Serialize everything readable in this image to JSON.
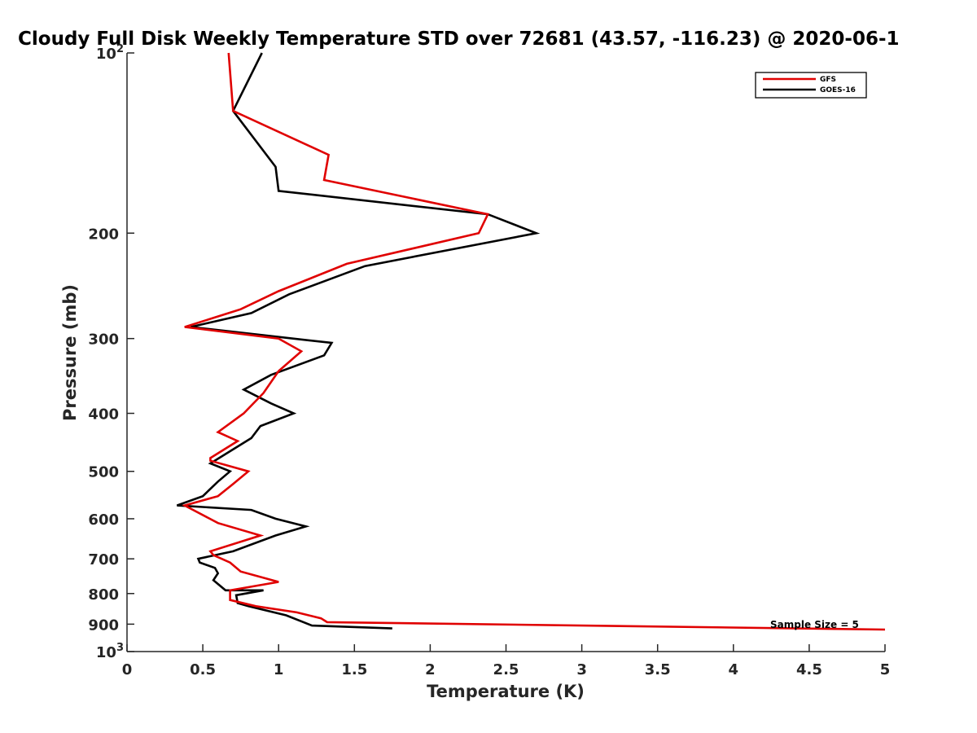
{
  "chart_data": {
    "type": "line",
    "title": "Cloudy Full Disk Weekly Temperature STD over 72681 (43.57, -116.23) @ 2020-06-1",
    "xlabel": "Temperature (K)",
    "ylabel": "Pressure (mb)",
    "xlim": [
      0,
      5
    ],
    "ylim": [
      100,
      1000
    ],
    "y_scale": "log",
    "y_reversed": true,
    "grid": false,
    "legend_position": "top-right",
    "x_ticks": [
      "0",
      "0.5",
      "1",
      "1.5",
      "2",
      "2.5",
      "3",
      "3.5",
      "4",
      "4.5",
      "5"
    ],
    "x_tick_values": [
      0,
      0.5,
      1,
      1.5,
      2,
      2.5,
      3,
      3.5,
      4,
      4.5,
      5
    ],
    "y_ticks": [
      {
        "value": 100,
        "base": "10",
        "exp": "2"
      },
      {
        "value": 200,
        "label": "200"
      },
      {
        "value": 300,
        "label": "300"
      },
      {
        "value": 400,
        "label": "400"
      },
      {
        "value": 500,
        "label": "500"
      },
      {
        "value": 600,
        "label": "600"
      },
      {
        "value": 700,
        "label": "700"
      },
      {
        "value": 800,
        "label": "800"
      },
      {
        "value": 900,
        "label": "900"
      },
      {
        "value": 1000,
        "base": "10",
        "exp": "3"
      }
    ],
    "annotation": "Sample Size = 5",
    "series": [
      {
        "name": "GFS",
        "color": "#e00000",
        "points": [
          [
            0.67,
            100
          ],
          [
            0.7,
            125
          ],
          [
            1.33,
            148
          ],
          [
            1.3,
            163
          ],
          [
            2.38,
            186
          ],
          [
            2.32,
            200
          ],
          [
            1.45,
            225
          ],
          [
            1.0,
            250
          ],
          [
            0.75,
            268
          ],
          [
            0.38,
            287
          ],
          [
            1.0,
            300
          ],
          [
            1.15,
            315
          ],
          [
            1.0,
            340
          ],
          [
            0.9,
            370
          ],
          [
            0.77,
            400
          ],
          [
            0.6,
            430
          ],
          [
            0.73,
            445
          ],
          [
            0.55,
            475
          ],
          [
            0.55,
            480
          ],
          [
            0.8,
            500
          ],
          [
            0.7,
            525
          ],
          [
            0.6,
            550
          ],
          [
            0.38,
            570
          ],
          [
            0.6,
            610
          ],
          [
            0.88,
            640
          ],
          [
            0.55,
            680
          ],
          [
            0.57,
            690
          ],
          [
            0.68,
            710
          ],
          [
            0.75,
            735
          ],
          [
            1.0,
            765
          ],
          [
            0.68,
            790
          ],
          [
            0.68,
            820
          ],
          [
            0.85,
            840
          ],
          [
            1.12,
            860
          ],
          [
            1.28,
            880
          ],
          [
            1.32,
            893
          ],
          [
            5.0,
            919
          ]
        ]
      },
      {
        "name": "GOES-16",
        "color": "#000000",
        "points": [
          [
            0.89,
            100
          ],
          [
            0.7,
            125
          ],
          [
            0.98,
            155
          ],
          [
            1.0,
            170
          ],
          [
            2.38,
            186
          ],
          [
            2.7,
            200
          ],
          [
            1.57,
            227
          ],
          [
            1.07,
            253
          ],
          [
            0.82,
            272
          ],
          [
            0.42,
            287
          ],
          [
            1.35,
            305
          ],
          [
            1.3,
            320
          ],
          [
            0.95,
            345
          ],
          [
            0.77,
            365
          ],
          [
            0.95,
            385
          ],
          [
            1.1,
            400
          ],
          [
            0.88,
            420
          ],
          [
            0.82,
            440
          ],
          [
            0.55,
            485
          ],
          [
            0.68,
            500
          ],
          [
            0.6,
            520
          ],
          [
            0.5,
            550
          ],
          [
            0.33,
            570
          ],
          [
            0.82,
            580
          ],
          [
            0.98,
            600
          ],
          [
            1.18,
            618
          ],
          [
            0.98,
            640
          ],
          [
            0.7,
            680
          ],
          [
            0.47,
            700
          ],
          [
            0.48,
            710
          ],
          [
            0.58,
            725
          ],
          [
            0.6,
            740
          ],
          [
            0.57,
            760
          ],
          [
            0.65,
            790
          ],
          [
            0.9,
            790
          ],
          [
            0.72,
            805
          ],
          [
            0.73,
            830
          ],
          [
            0.8,
            840
          ],
          [
            1.05,
            870
          ],
          [
            1.22,
            905
          ],
          [
            1.75,
            915
          ]
        ]
      }
    ]
  }
}
